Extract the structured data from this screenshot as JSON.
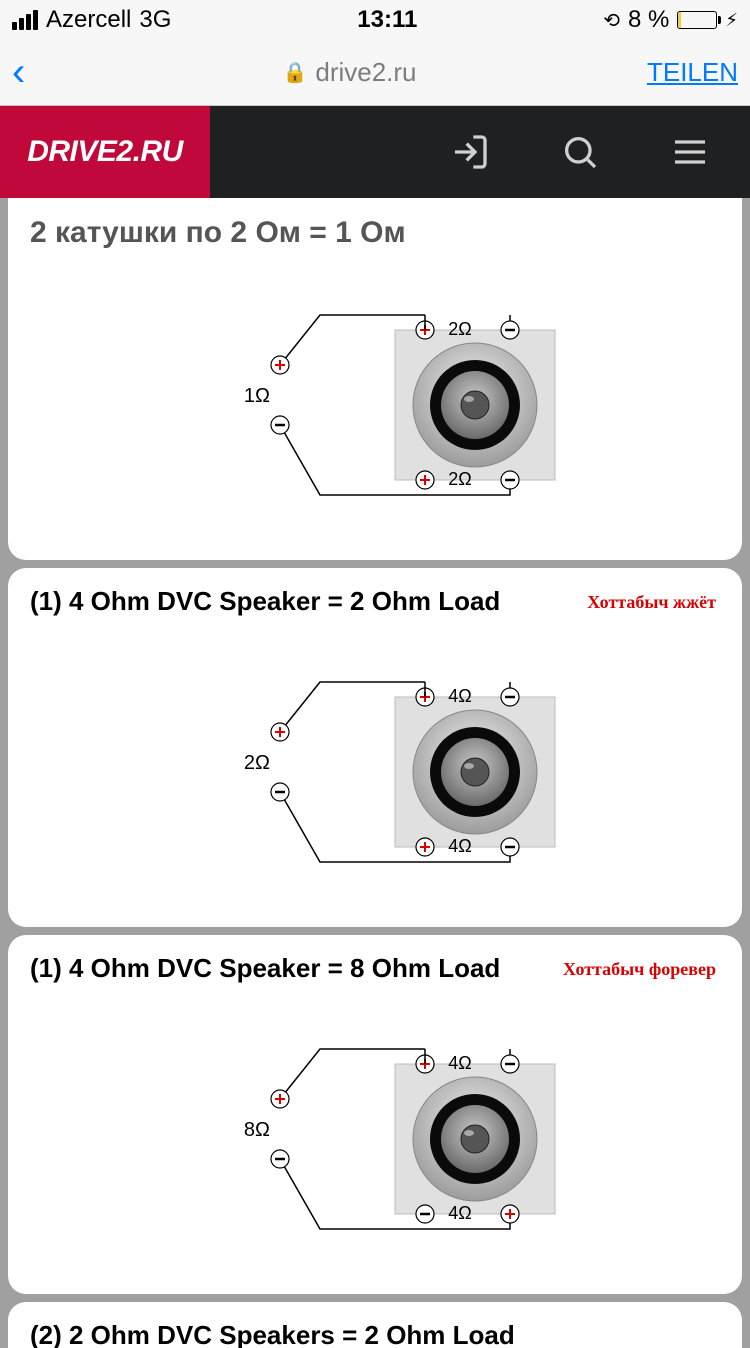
{
  "status": {
    "carrier": "Azercell",
    "network": "3G",
    "time": "13:11",
    "battery_pct": "8 %",
    "battery_fill_pct": 8
  },
  "browser": {
    "url_host": "drive2.ru",
    "share_label": "TEILEN"
  },
  "header": {
    "logo": "DRIVE2.RU"
  },
  "cards": [
    {
      "title": "2 катушки по 2 Ом = 1 Ом",
      "title_color": "#5a5a5a",
      "red_note": "",
      "left_ohm": "1Ω",
      "top_ohm": "2Ω",
      "bottom_ohm": "2Ω",
      "bottom_polarity_swap": false
    },
    {
      "title": "(1) 4 Ohm DVC Speaker = 2 Ohm Load",
      "title_color": "#000000",
      "red_note": "Хоттабыч жжёт",
      "left_ohm": "2Ω",
      "top_ohm": "4Ω",
      "bottom_ohm": "4Ω",
      "bottom_polarity_swap": false
    },
    {
      "title": "(1) 4 Ohm DVC Speaker = 8 Ohm Load",
      "title_color": "#000000",
      "red_note": "Хоттабыч форевер",
      "left_ohm": "8Ω",
      "top_ohm": "4Ω",
      "bottom_ohm": "4Ω",
      "bottom_polarity_swap": true
    }
  ],
  "partial_card_title": "(2) 2 Ohm DVC Speakers = 2 Ohm Load",
  "diagram_style": {
    "wire_color": "#000000",
    "plus_color": "#d80000",
    "minus_color": "#000000",
    "speaker_bg_gradient": [
      "#e8e8e8",
      "#b0b0b0"
    ],
    "speaker_ring_dark": "#0a0a0a",
    "speaker_cone": "#8a8a8a",
    "panel_bg": "#e0e0e0"
  }
}
